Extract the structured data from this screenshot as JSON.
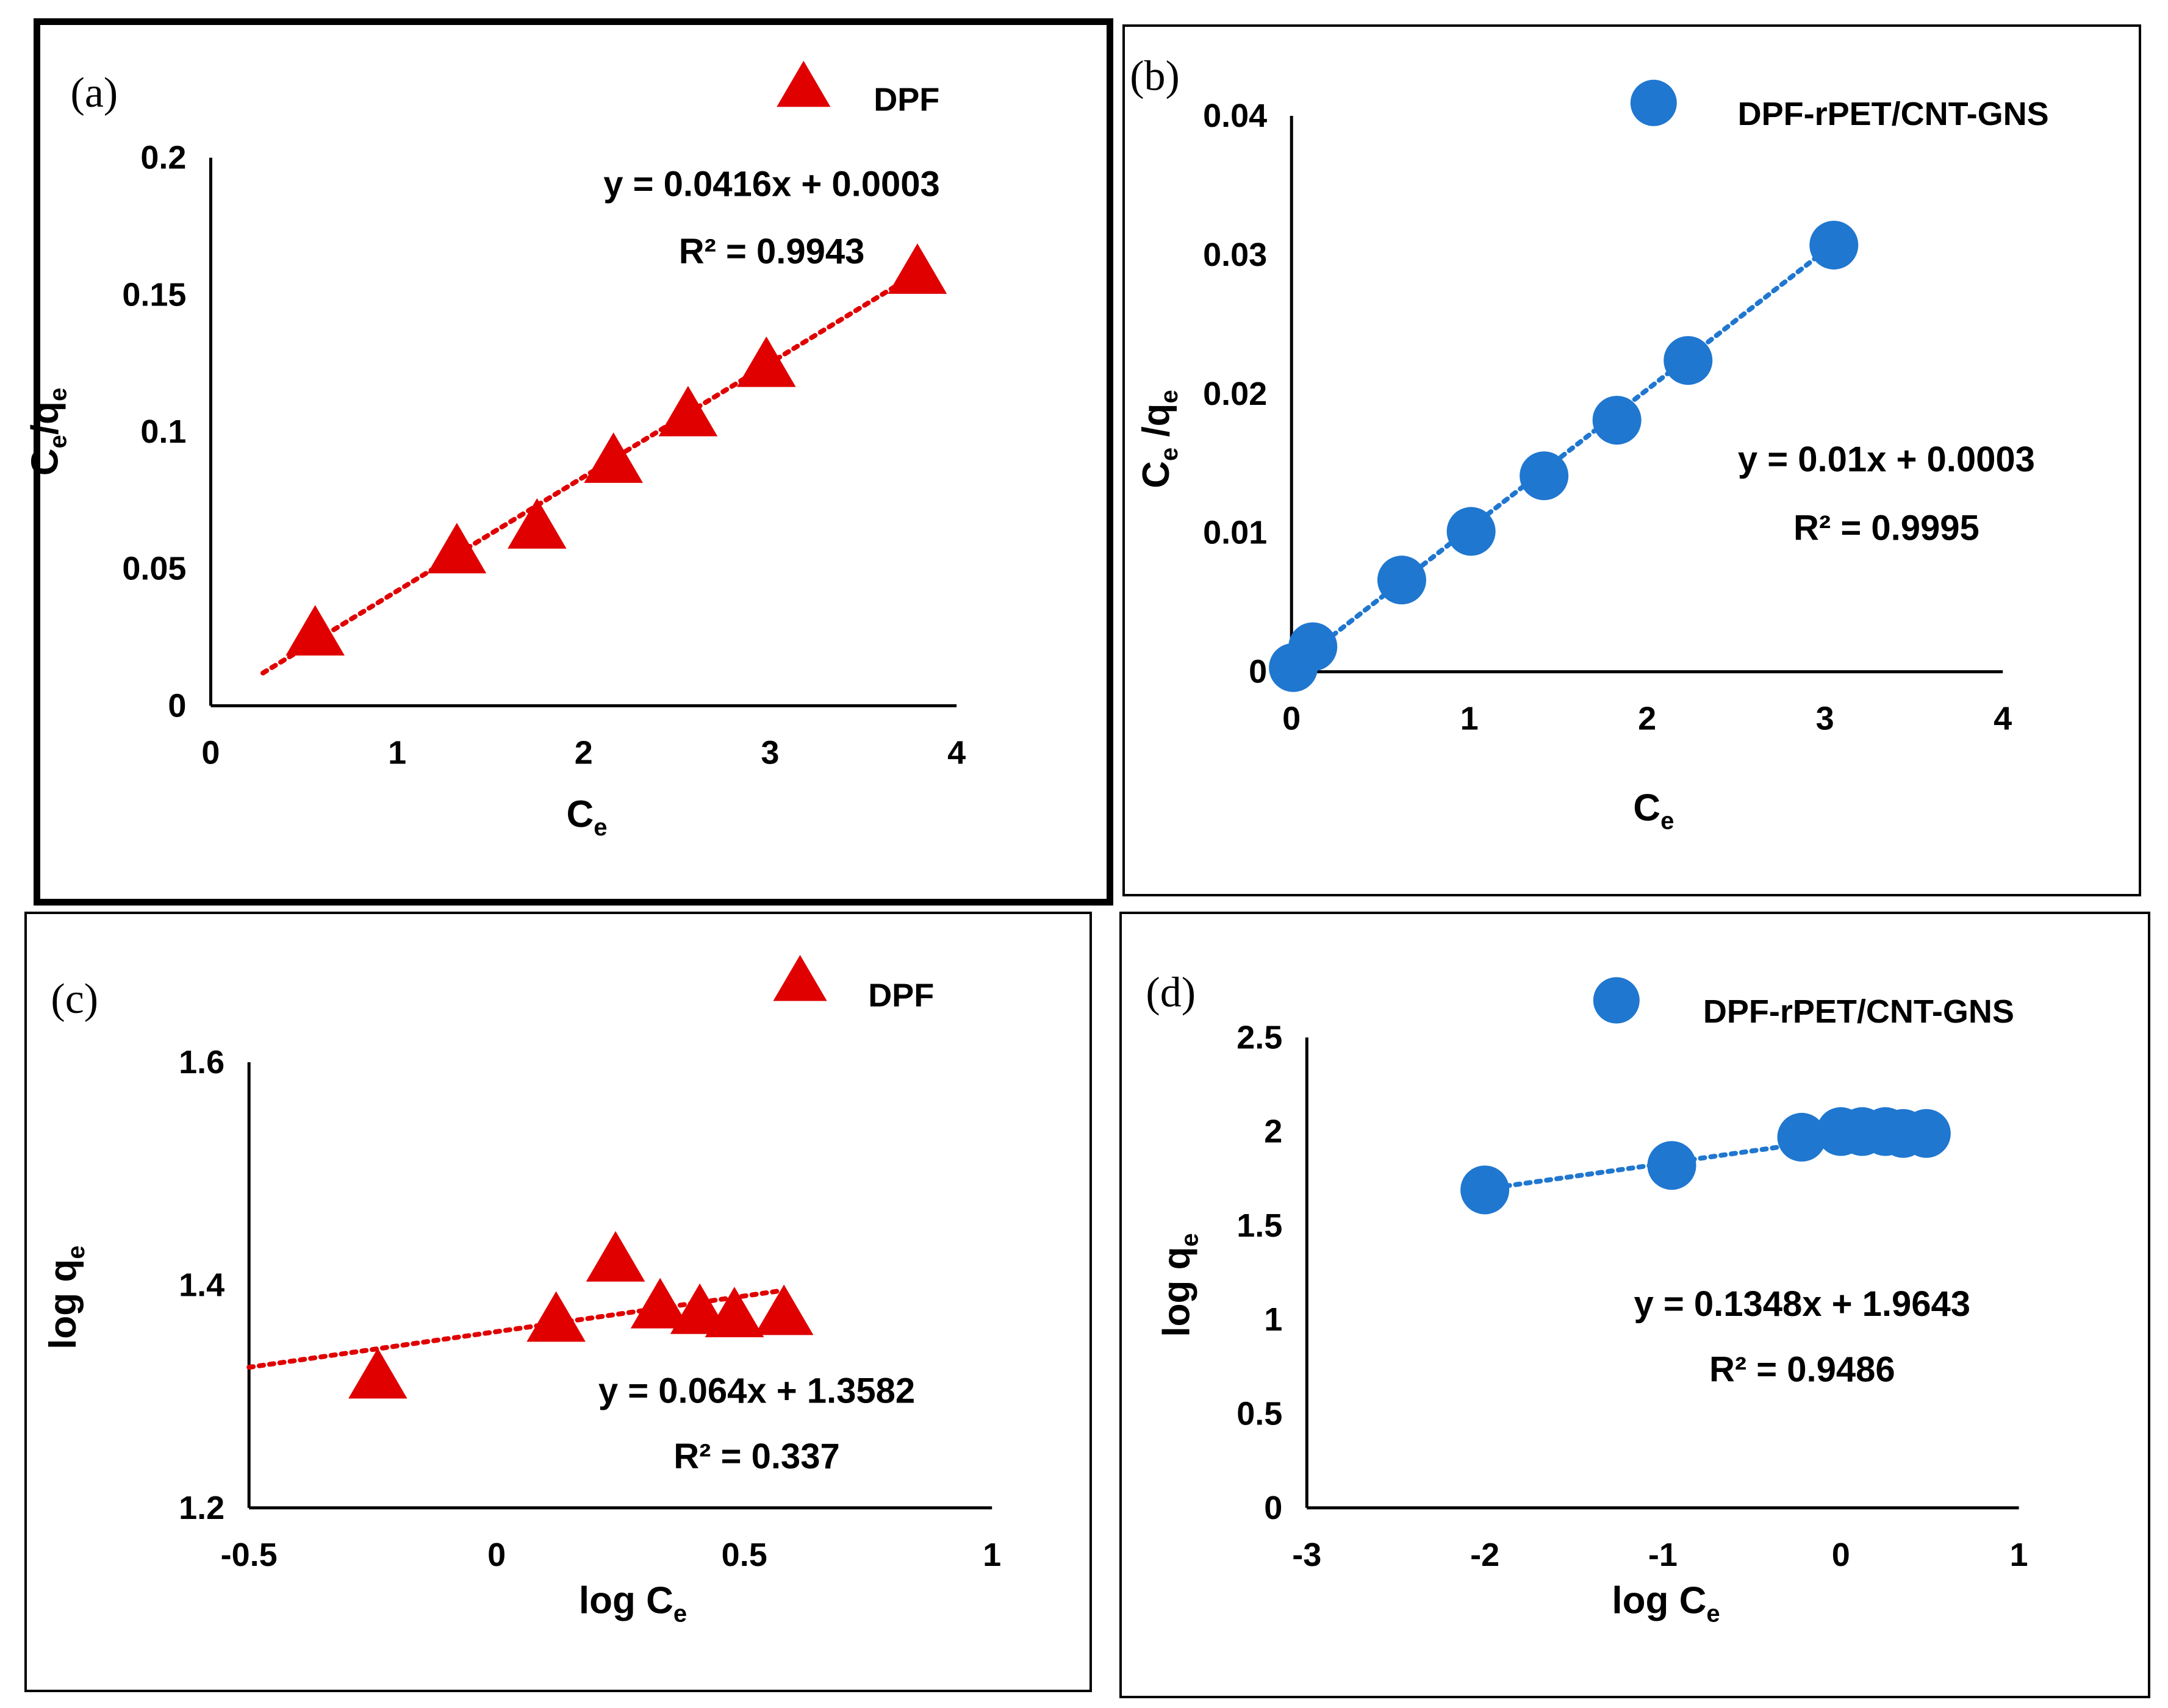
{
  "chart_data": [
    {
      "type": "scatter",
      "panel_label": "(a)",
      "xlabel": "C",
      "xlabel_sub": "e",
      "ylabel_main": "C",
      "ylabel_sub1": "e",
      "ylabel_mid": "/q",
      "ylabel_sub2": "e",
      "xlim": [
        0,
        4
      ],
      "ylim": [
        0,
        0.2
      ],
      "xticks": [
        "0",
        "1",
        "2",
        "3",
        "4"
      ],
      "yticks": [
        "0",
        "0.05",
        "0.1",
        "0.15",
        "0.2"
      ],
      "legend": "DPF",
      "color": "#e00000",
      "marker": "triangle",
      "x": [
        0.56,
        1.32,
        1.75,
        2.16,
        2.56,
        2.98,
        3.79
      ],
      "y": [
        0.026,
        0.056,
        0.065,
        0.089,
        0.106,
        0.124,
        0.158
      ],
      "trendline": {
        "slope": 0.0416,
        "intercept": 0.0003,
        "x_range": [
          0.28,
          3.82
        ]
      },
      "equation": "y = 0.0416x + 0.0003",
      "r2_label": "R² = 0.9943"
    },
    {
      "type": "scatter",
      "panel_label": "(b)",
      "xlabel": "C",
      "xlabel_sub": "e",
      "ylabel_main": "C",
      "ylabel_sub1": "e",
      "ylabel_mid": " /q",
      "ylabel_sub2": "e",
      "xlim": [
        0,
        4
      ],
      "ylim": [
        0,
        0.04
      ],
      "xticks": [
        "0",
        "1",
        "2",
        "3",
        "4"
      ],
      "yticks": [
        "0",
        "0.01",
        "0.02",
        "0.03",
        "0.04"
      ],
      "legend": "DPF-rPET/CNT-GNS",
      "color": "#1f77d0",
      "marker": "circle",
      "x": [
        0.01,
        0.12,
        0.62,
        1.01,
        1.42,
        1.83,
        2.23,
        3.05
      ],
      "y": [
        0.0003,
        0.0018,
        0.0066,
        0.0101,
        0.0141,
        0.0181,
        0.0224,
        0.0307
      ],
      "trendline": {
        "slope": 0.01,
        "intercept": 0.0003,
        "x_range": [
          0.0,
          3.05
        ]
      },
      "equation": "y = 0.01x + 0.0003",
      "r2_label": "R² = 0.9995"
    },
    {
      "type": "scatter",
      "panel_label": "(c)",
      "xlabel": "log C",
      "xlabel_sub": "e",
      "ylabel_main": "log q",
      "ylabel_sub1": "e",
      "ylabel_mid": "",
      "ylabel_sub2": "",
      "xlim": [
        -0.5,
        1
      ],
      "ylim": [
        1.2,
        1.6
      ],
      "xticks": [
        "-0.5",
        "0",
        "0.5",
        "1"
      ],
      "yticks": [
        "1.2",
        "1.4",
        "1.6"
      ],
      "legend": "DPF",
      "color": "#e00000",
      "marker": "triangle",
      "x": [
        -0.24,
        0.12,
        0.24,
        0.33,
        0.41,
        0.48,
        0.58
      ],
      "y": [
        1.317,
        1.368,
        1.422,
        1.38,
        1.375,
        1.372,
        1.374
      ],
      "trendline": {
        "slope": 0.064,
        "intercept": 1.3582,
        "x_range": [
          -0.5,
          0.57
        ]
      },
      "equation": "y = 0.064x + 1.3582",
      "r2_label": "R² = 0.337"
    },
    {
      "type": "scatter",
      "panel_label": "(d)",
      "xlabel": "log C",
      "xlabel_sub": "e",
      "ylabel_main": "log q",
      "ylabel_sub1": "e",
      "ylabel_mid": "",
      "ylabel_sub2": "",
      "xlim": [
        -3,
        1
      ],
      "ylim": [
        0,
        2.5
      ],
      "xticks": [
        "-3",
        "-2",
        "-1",
        "0",
        "1"
      ],
      "yticks": [
        "0",
        "0.5",
        "1",
        "1.5",
        "2",
        "2.5"
      ],
      "legend": "DPF-rPET/CNT-GNS",
      "color": "#1f77d0",
      "marker": "circle",
      "x": [
        -2.0,
        -0.95,
        -0.22,
        0.0,
        0.12,
        0.25,
        0.35,
        0.48
      ],
      "y": [
        1.69,
        1.82,
        1.97,
        2.0,
        2.0,
        2.0,
        1.99,
        1.99
      ],
      "trendline": {
        "slope": 0.1348,
        "intercept": 1.9643,
        "x_range": [
          -2.0,
          0.0
        ]
      },
      "equation": "y = 0.1348x + 1.9643",
      "r2_label": "R² = 0.9486"
    }
  ]
}
